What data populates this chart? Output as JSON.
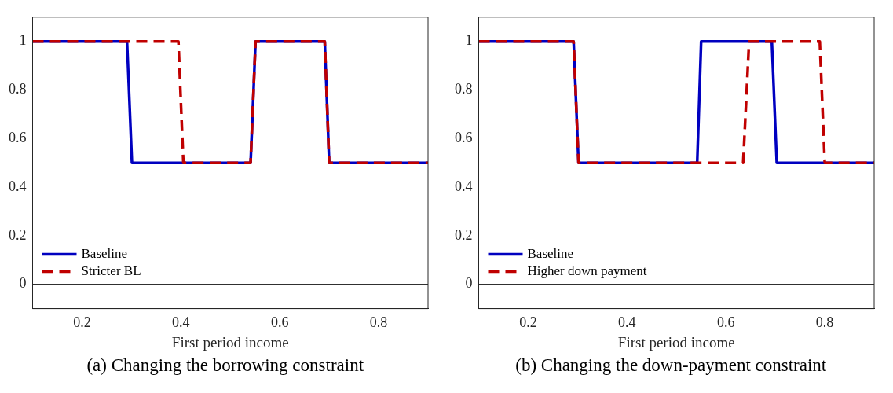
{
  "chart_data": [
    {
      "type": "line",
      "xlabel": "First period income",
      "xlim": [
        0.1,
        0.9
      ],
      "xticks": [
        0.2,
        0.4,
        0.6,
        0.8
      ],
      "ylim": [
        -0.1,
        1.1
      ],
      "yticks": [
        0,
        0.2,
        0.4,
        0.6,
        0.8,
        1
      ],
      "grid": false,
      "legend": "bottom left",
      "marker": "none",
      "ref_lines": [
        {
          "axis": "y",
          "value": 0,
          "color": "#000000"
        }
      ],
      "annotations": [
        "(a) Changing the borrowing constraint"
      ],
      "series": [
        {
          "name": "Baseline",
          "color": "#0000c0",
          "line_style": "solid",
          "x": [
            0.1,
            0.291,
            0.301,
            0.541,
            0.551,
            0.691,
            0.7,
            0.9
          ],
          "values": [
            1,
            1,
            0.5,
            0.5,
            1,
            1,
            0.5,
            0.5
          ]
        },
        {
          "name": "Stricter BL",
          "color": "#c00000",
          "line_style": "dashed",
          "x": [
            0.1,
            0.395,
            0.405,
            0.541,
            0.551,
            0.691,
            0.7,
            0.9
          ],
          "values": [
            1,
            1,
            0.5,
            0.5,
            1,
            1,
            0.5,
            0.5
          ]
        }
      ]
    },
    {
      "type": "line",
      "xlabel": "First period income",
      "xlim": [
        0.1,
        0.9
      ],
      "xticks": [
        0.2,
        0.4,
        0.6,
        0.8
      ],
      "ylim": [
        -0.1,
        1.1
      ],
      "yticks": [
        0,
        0.2,
        0.4,
        0.6,
        0.8,
        1
      ],
      "grid": false,
      "legend": "bottom left",
      "marker": "none",
      "ref_lines": [
        {
          "axis": "y",
          "value": 0,
          "color": "#000000"
        }
      ],
      "annotations": [
        "(b) Changing the down-payment constraint"
      ],
      "series": [
        {
          "name": "Baseline",
          "color": "#0000c0",
          "line_style": "solid",
          "x": [
            0.1,
            0.292,
            0.302,
            0.542,
            0.55,
            0.693,
            0.703,
            0.9
          ],
          "values": [
            1,
            1,
            0.5,
            0.5,
            1,
            1,
            0.5,
            0.5
          ]
        },
        {
          "name": "Higher down payment",
          "color": "#c00000",
          "line_style": "dashed",
          "x": [
            0.1,
            0.292,
            0.302,
            0.635,
            0.647,
            0.79,
            0.8,
            0.9
          ],
          "values": [
            1,
            1,
            0.5,
            0.5,
            1,
            1,
            0.5,
            0.5
          ]
        }
      ]
    }
  ]
}
